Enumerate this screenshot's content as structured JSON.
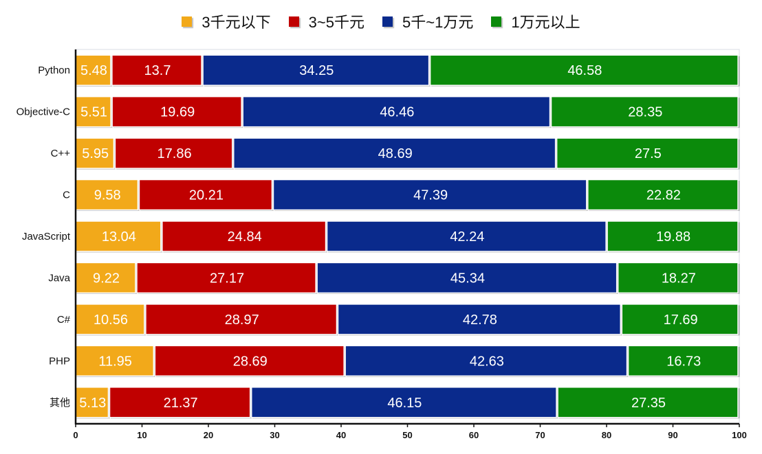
{
  "chart_data": {
    "type": "bar",
    "orientation": "horizontal",
    "stacked": true,
    "legend_position": "top",
    "categories": [
      "Python",
      "Objective-C",
      "C++",
      "C",
      "JavaScript",
      "Java",
      "C#",
      "PHP",
      "其他"
    ],
    "series": [
      {
        "name": "3千元以下",
        "color": "#f2a91a",
        "values": [
          5.48,
          5.51,
          5.95,
          9.58,
          13.04,
          9.22,
          10.56,
          11.95,
          5.13
        ]
      },
      {
        "name": "3~5千元",
        "color": "#c00000",
        "values": [
          13.7,
          19.69,
          17.86,
          20.21,
          24.84,
          27.17,
          28.97,
          28.69,
          21.37
        ]
      },
      {
        "name": "5千~1万元",
        "color": "#0a2a8c",
        "values": [
          34.25,
          46.46,
          48.69,
          47.39,
          42.24,
          45.34,
          42.78,
          42.63,
          46.15
        ]
      },
      {
        "name": "1万元以上",
        "color": "#0b8a0b",
        "values": [
          46.58,
          28.35,
          27.5,
          22.82,
          19.88,
          18.27,
          17.69,
          16.73,
          27.35
        ]
      }
    ],
    "xlim": [
      0,
      100
    ],
    "xticks": [
      0,
      10,
      20,
      30,
      40,
      50,
      60,
      70,
      80,
      90,
      100
    ],
    "grid": false
  }
}
